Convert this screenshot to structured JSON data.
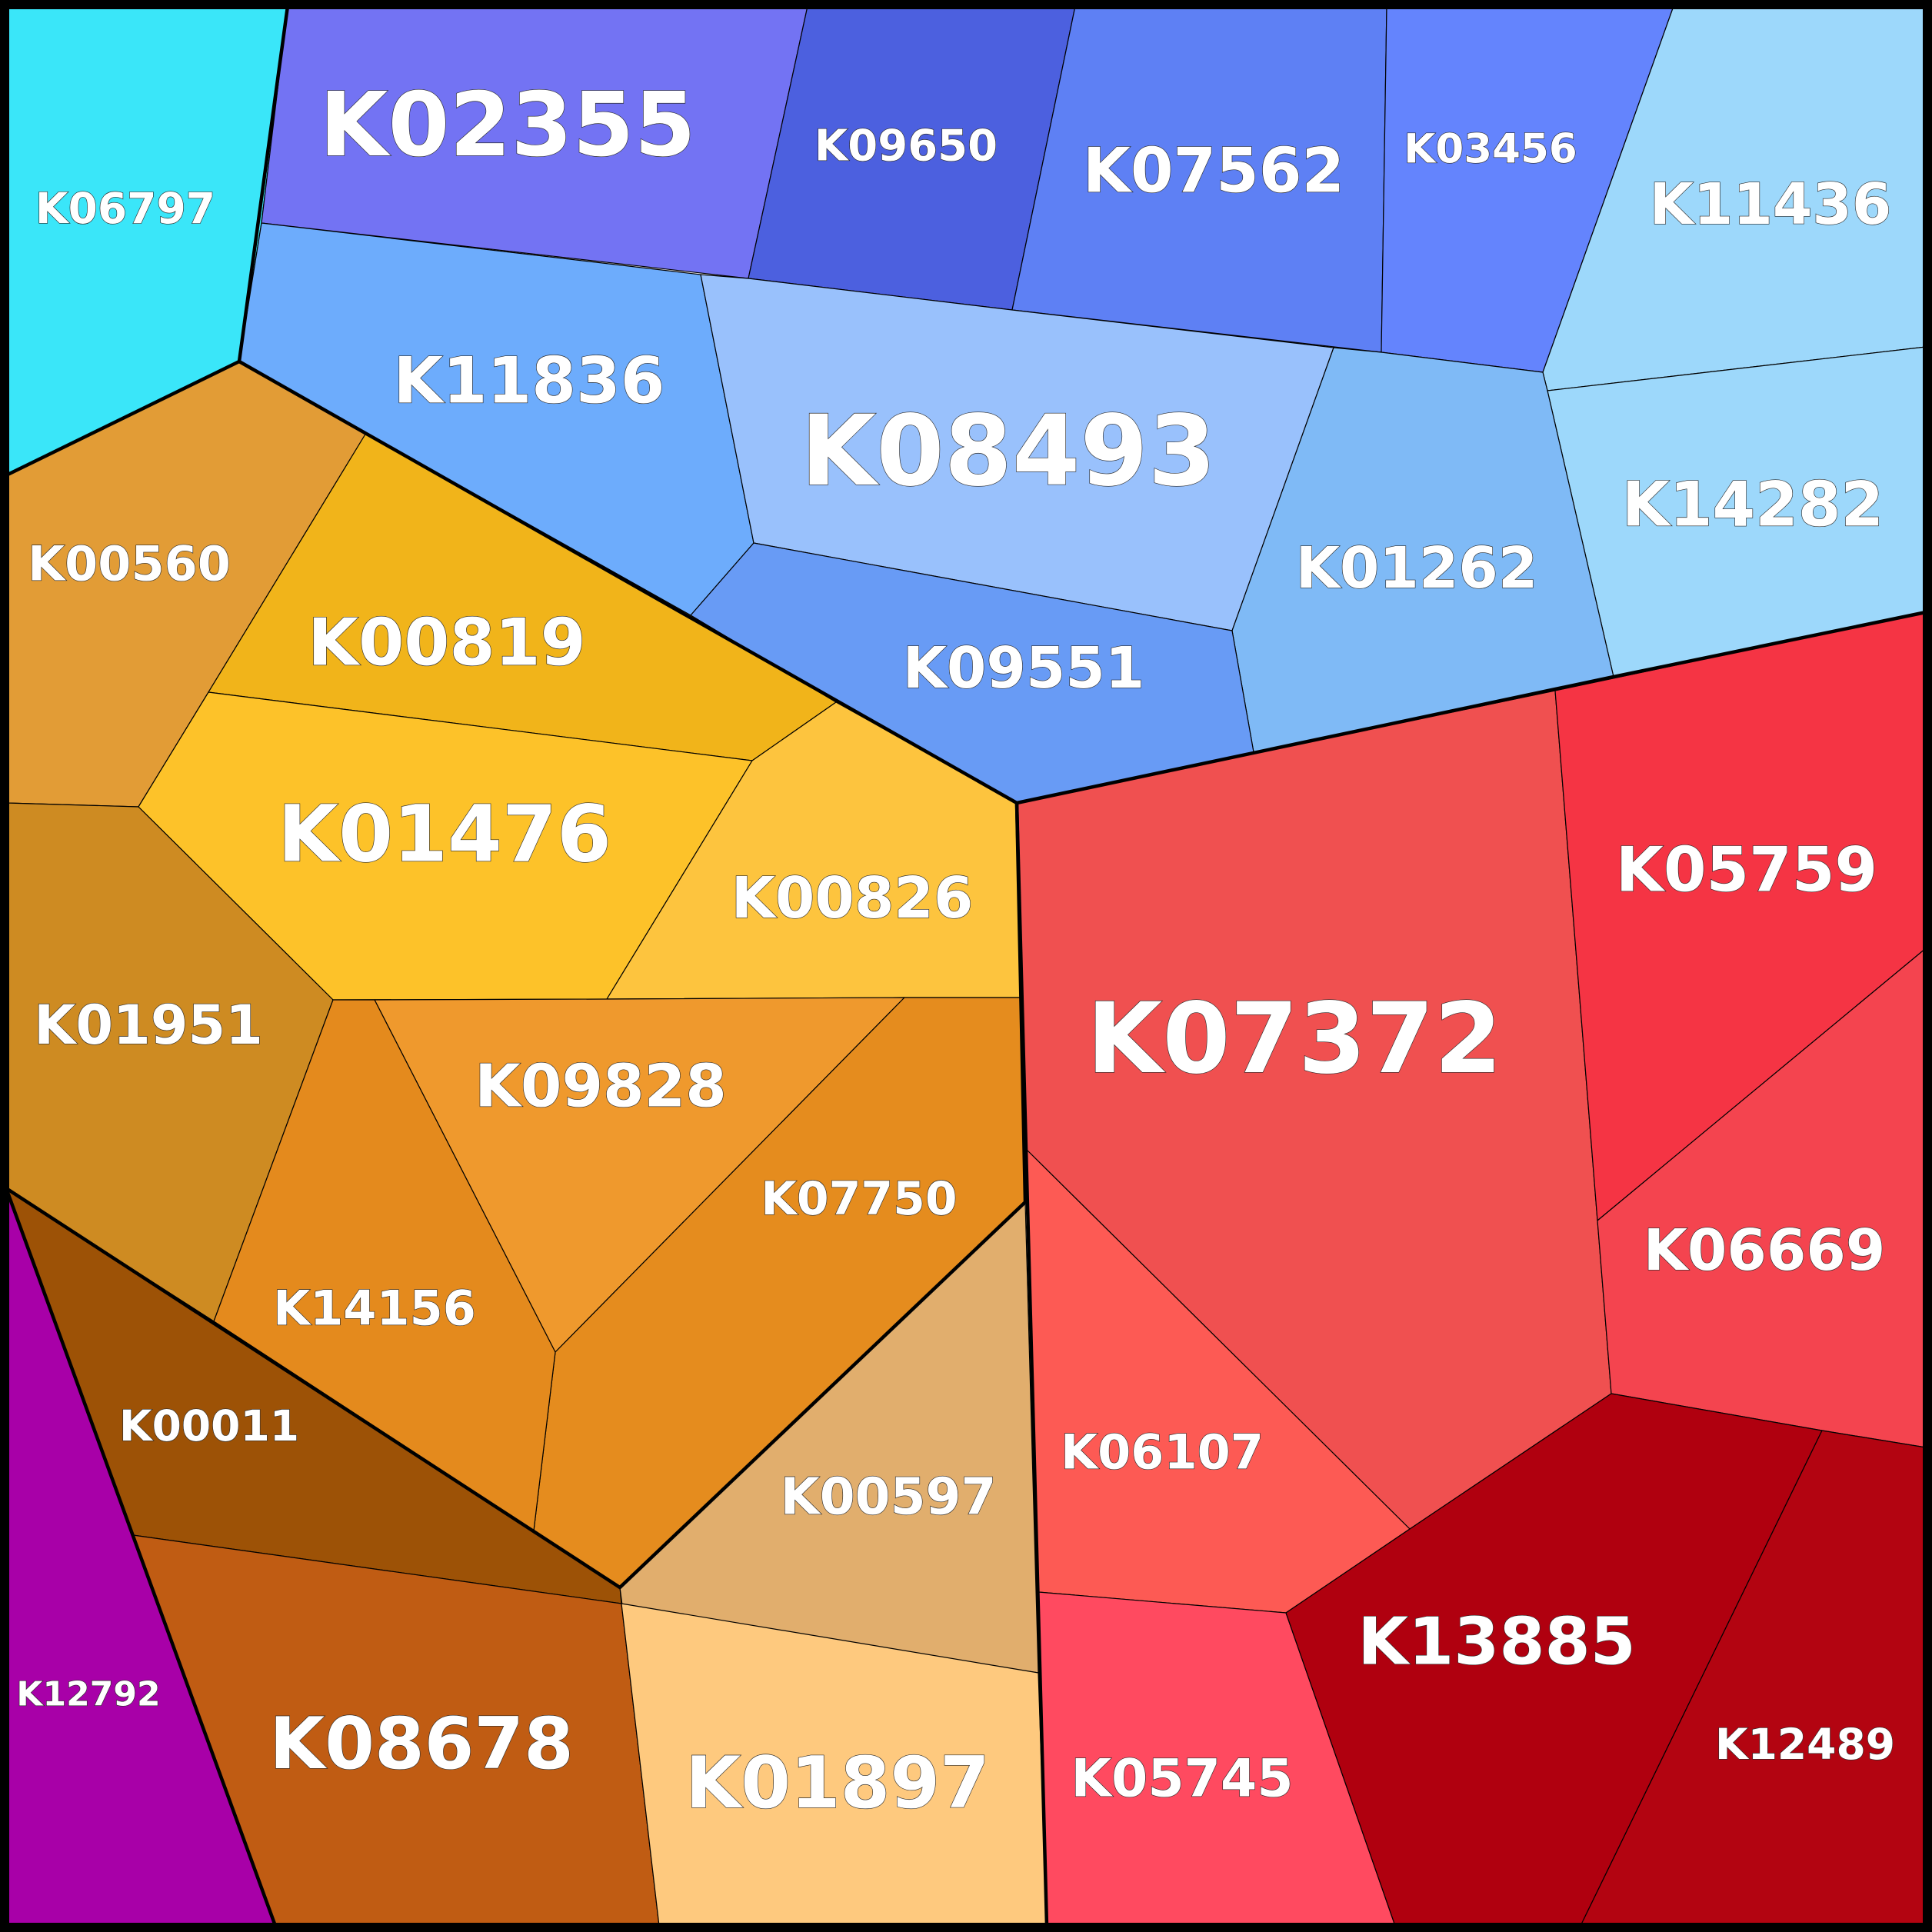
{
  "chart_data": {
    "type": "voronoi-treemap",
    "groups": [
      {
        "color": "#3399ff",
        "cells": [
          {
            "label": "K06797",
            "color": "#3ae6f9"
          },
          {
            "label": "K02355",
            "color": "#7373f3"
          },
          {
            "label": "K09650",
            "color": "#4c60df"
          },
          {
            "label": "K07562",
            "color": "#5e80f4"
          },
          {
            "label": "K03456",
            "color": "#6484fd"
          },
          {
            "label": "K11436",
            "color": "#9dd8fb"
          },
          {
            "label": "K11836",
            "color": "#6dacfc"
          },
          {
            "label": "K08493",
            "color": "#99c1fc"
          },
          {
            "label": "K14282",
            "color": "#9dd8fb"
          },
          {
            "label": "K01262",
            "color": "#7fbaf6"
          },
          {
            "label": "K09551",
            "color": "#689bf5"
          }
        ]
      },
      {
        "color": "#e09020",
        "cells": [
          {
            "label": "K00560",
            "color": "#e29c36"
          },
          {
            "label": "K00819",
            "color": "#f1b41a"
          },
          {
            "label": "K01476",
            "color": "#fdc229"
          },
          {
            "label": "K00826",
            "color": "#fdc43e"
          },
          {
            "label": "K01951",
            "color": "#ce8b22"
          },
          {
            "label": "K09828",
            "color": "#ef992d"
          },
          {
            "label": "K07750",
            "color": "#e58c1e"
          },
          {
            "label": "K14156",
            "color": "#e48a1d"
          },
          {
            "label": "K00011",
            "color": "#9d5206"
          },
          {
            "label": "K00597",
            "color": "#e1ae6d"
          },
          {
            "label": "K08678",
            "color": "#c05c13"
          },
          {
            "label": "K01897",
            "color": "#fec97e"
          }
        ]
      },
      {
        "color": "#f03040",
        "cells": [
          {
            "label": "K07372",
            "color": "#f05050"
          },
          {
            "label": "K05759",
            "color": "#f53444"
          },
          {
            "label": "K06669",
            "color": "#f4444f"
          },
          {
            "label": "K06107",
            "color": "#fd5a54"
          },
          {
            "label": "K05745",
            "color": "#ff4a60"
          },
          {
            "label": "K13885",
            "color": "#b0000f"
          },
          {
            "label": "K12489",
            "color": "#b30411"
          }
        ]
      },
      {
        "color": "#a800a8",
        "cells": [
          {
            "label": "K12792",
            "color": "#a800a8"
          }
        ]
      }
    ]
  }
}
